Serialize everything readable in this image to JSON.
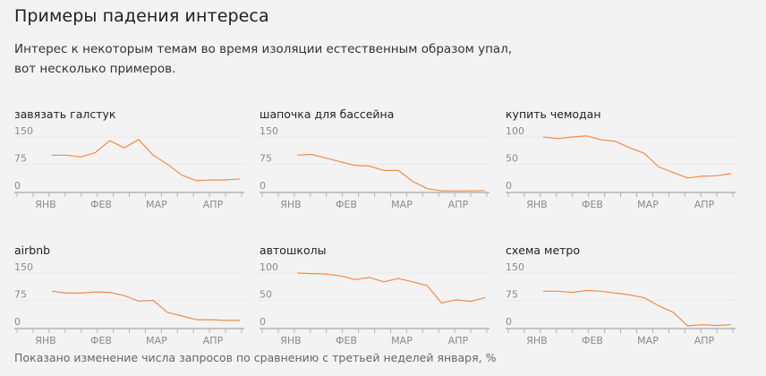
{
  "title": "Примеры падения интереса",
  "lead": "Интерес к некоторым темам во время изоляции естественным образом упал, вот несколько примеров.",
  "footnote": "Показано изменение числа запросов по сравнению с третьей неделей января, %",
  "colors": {
    "line": "#f08c4a",
    "axis": "#b4b4b4",
    "grid": "#d4d4d4"
  },
  "chart_data": [
    {
      "type": "line",
      "title": "завязать галстук",
      "yticks": [
        0,
        75,
        150
      ],
      "ylim": [
        0,
        150
      ],
      "xlabels": [
        "ЯНВ",
        "ФЕВ",
        "МАР",
        "АПР"
      ],
      "series": [
        {
          "values": [
            100,
            100,
            95,
            107,
            140,
            120,
            143,
            100,
            75,
            45,
            30,
            32,
            32,
            35
          ]
        }
      ]
    },
    {
      "type": "line",
      "title": "шапочка для бассейна",
      "yticks": [
        0,
        75,
        150
      ],
      "ylim": [
        0,
        150
      ],
      "xlabels": [
        "ЯНВ",
        "ФЕВ",
        "МАР",
        "АПР"
      ],
      "series": [
        {
          "values": [
            100,
            102,
            92,
            82,
            72,
            70,
            58,
            58,
            28,
            8,
            2,
            2,
            2,
            3
          ]
        }
      ]
    },
    {
      "type": "line",
      "title": "купить чемодан",
      "yticks": [
        0,
        50,
        100
      ],
      "ylim": [
        0,
        100
      ],
      "xlabels": [
        "ЯНВ",
        "ФЕВ",
        "МАР",
        "АПР"
      ],
      "series": [
        {
          "values": [
            100,
            97,
            100,
            102,
            95,
            92,
            80,
            70,
            45,
            35,
            25,
            28,
            29,
            33
          ]
        }
      ]
    },
    {
      "type": "line",
      "title": "airbnb",
      "yticks": [
        0,
        75,
        150
      ],
      "ylim": [
        0,
        150
      ],
      "xlabels": [
        "ЯНВ",
        "ФЕВ",
        "МАР",
        "АПР"
      ],
      "series": [
        {
          "values": [
            100,
            95,
            95,
            98,
            97,
            88,
            73,
            75,
            42,
            32,
            22,
            22,
            20,
            20
          ]
        }
      ]
    },
    {
      "type": "line",
      "title": "автошколы",
      "yticks": [
        0,
        50,
        100
      ],
      "ylim": [
        0,
        100
      ],
      "xlabels": [
        "ЯНВ",
        "ФЕВ",
        "МАР",
        "АПР"
      ],
      "series": [
        {
          "values": [
            100,
            99,
            98,
            95,
            88,
            92,
            84,
            90,
            84,
            77,
            45,
            51,
            48,
            55
          ]
        }
      ]
    },
    {
      "type": "line",
      "title": "схема метро",
      "yticks": [
        0,
        75,
        150
      ],
      "ylim": [
        0,
        150
      ],
      "xlabels": [
        "ЯНВ",
        "ФЕВ",
        "МАР",
        "АПР"
      ],
      "series": [
        {
          "values": [
            100,
            100,
            97,
            102,
            100,
            95,
            90,
            82,
            60,
            42,
            5,
            8,
            6,
            8
          ]
        }
      ]
    }
  ]
}
